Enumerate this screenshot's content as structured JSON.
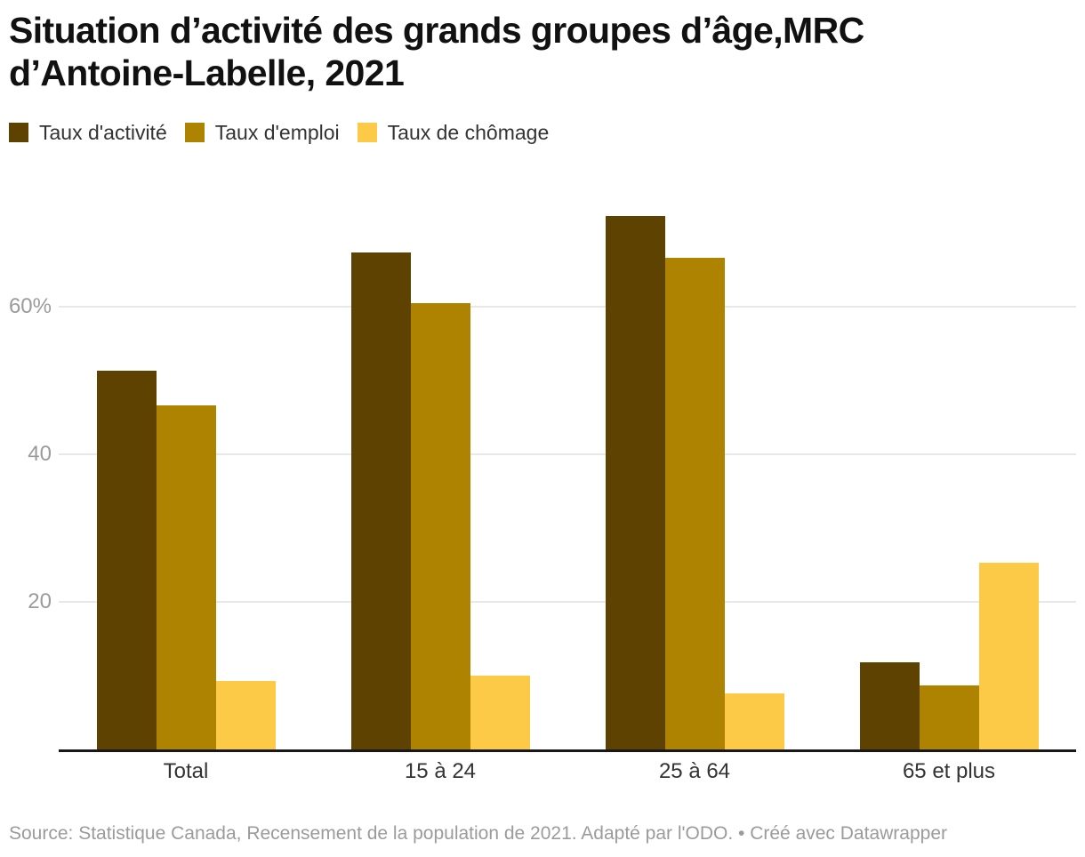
{
  "header": {
    "title": "Situation d’activité des grands groupes d’âge,MRC d’Antoine-Labelle, 2021",
    "title_lines": [
      "Situation d’activité des grands groupes d’âge,MRC",
      "d’Antoine-Labelle, 2021"
    ]
  },
  "legend": {
    "items": [
      {
        "label": "Taux d'activité",
        "color": "#5e4202"
      },
      {
        "label": "Taux d'emploi",
        "color": "#ad8301"
      },
      {
        "label": "Taux de chômage",
        "color": "#fcca46"
      }
    ]
  },
  "chart_data": {
    "type": "bar",
    "title": "Situation d’activité des grands groupes d’âge,MRC d’Antoine-Labelle, 2021",
    "categories": [
      "Total",
      "15 à 24",
      "25 à 64",
      "65 et plus"
    ],
    "series": [
      {
        "name": "Taux d'activité",
        "color": "#5e4202",
        "values": [
          51.4,
          67.4,
          72.3,
          11.8
        ]
      },
      {
        "name": "Taux d'emploi",
        "color": "#ad8301",
        "values": [
          46.6,
          60.5,
          66.7,
          8.7
        ]
      },
      {
        "name": "Taux de chômage",
        "color": "#fcca46",
        "values": [
          9.3,
          10.0,
          7.6,
          25.3
        ]
      }
    ],
    "unit": "%",
    "ylim": [
      0,
      77.5
    ],
    "y_ticks": [
      {
        "value": 20,
        "label": "20"
      },
      {
        "value": 40,
        "label": "40"
      },
      {
        "value": 60,
        "label": "60%"
      }
    ],
    "grid": "horizontal",
    "legend_position": "top",
    "xlabel": "",
    "ylabel": ""
  },
  "footer": {
    "source": "Source: Statistique Canada, Recensement de la population de 2021. Adapté par l'ODO. • Créé avec Datawrapper"
  },
  "colors": {
    "background": "#ffffff",
    "title": "#111111",
    "axis_line": "#18181a",
    "gridline": "#e8e8e8",
    "tick_label": "#9b9b9b",
    "x_label": "#333333",
    "footer_text": "#9b9b9b"
  }
}
